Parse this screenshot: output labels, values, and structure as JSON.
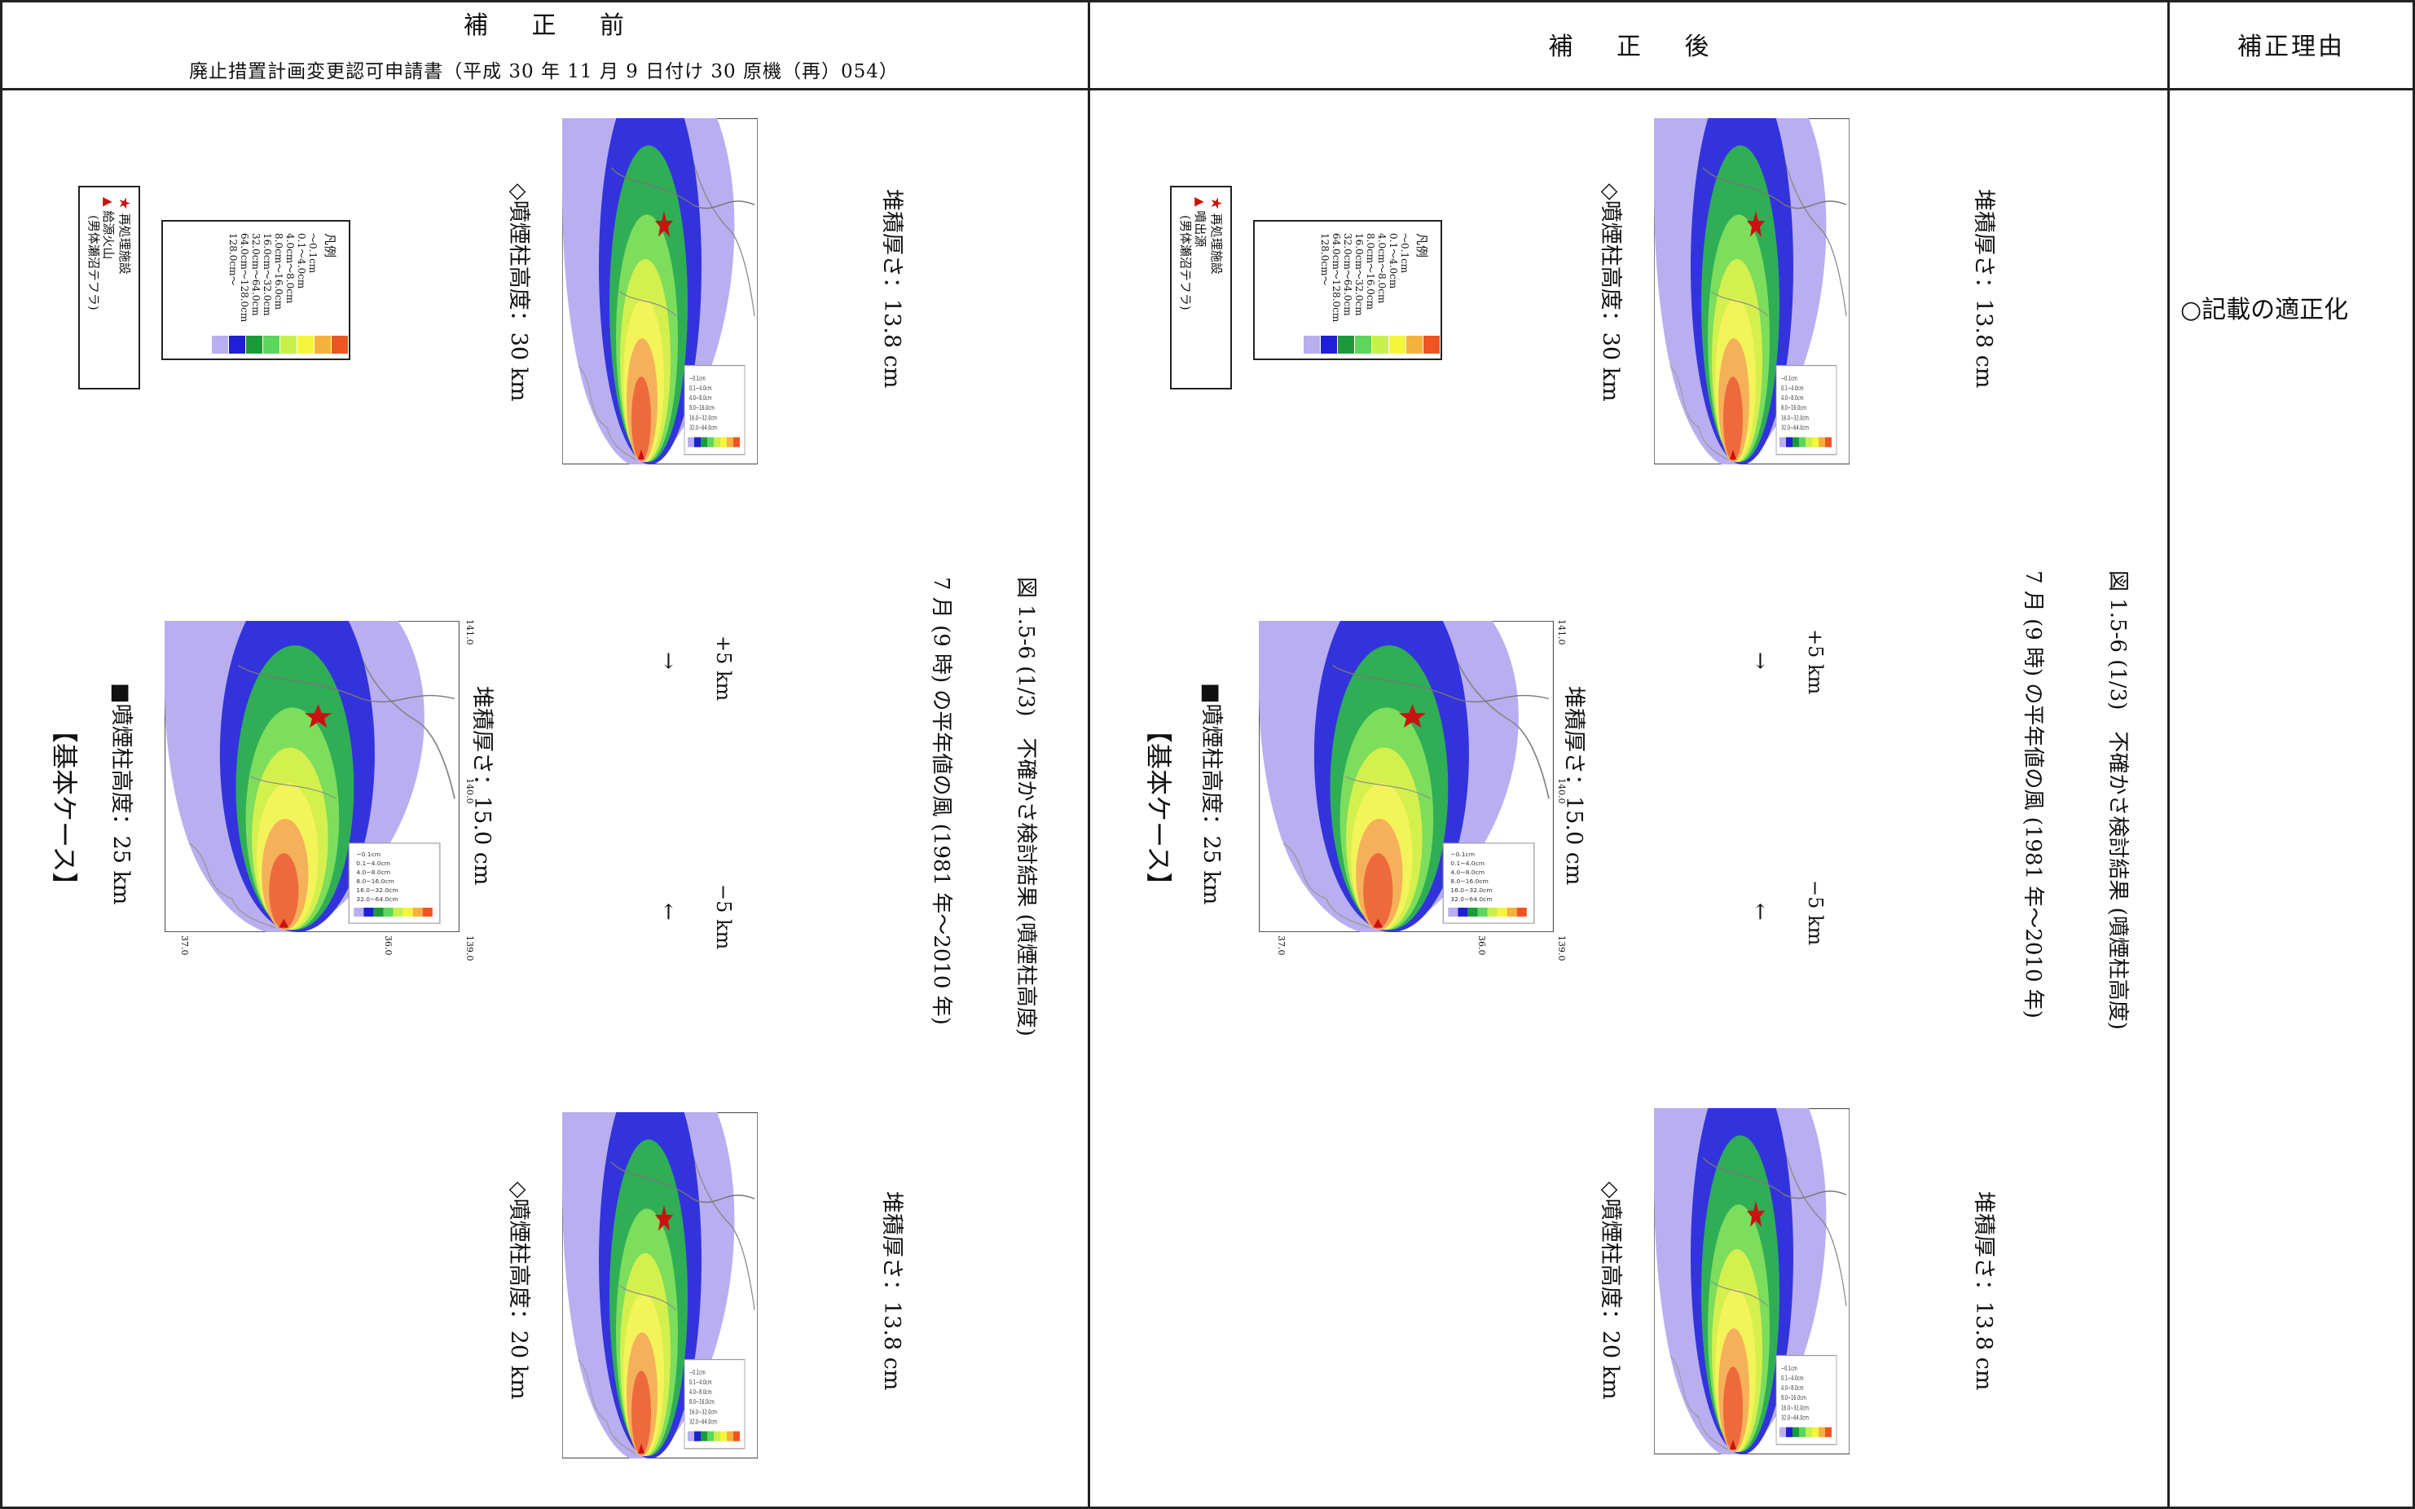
{
  "header": {
    "before_title": "補 正 前",
    "before_subtitle": "廃止措置計画変更認可申請書（平成 30 年 11 月 9 日付け 30 原機（再）054）",
    "after_title": "補 正 後",
    "reason_title": "補正理由"
  },
  "reason_text": "○記載の適正化",
  "before": {
    "basic_case": "【基本ケース】",
    "basic_height": "■噴煙柱高度：25 km",
    "basic_thickness": "堆積厚さ：15.0 cm",
    "upper_height": "◇噴煙柱高度：30 km",
    "upper_thickness": "堆積厚さ：13.8 cm",
    "lower_height": "◇噴煙柱高度：20 km",
    "lower_thickness": "堆積厚さ：13.8 cm",
    "plus": "+5 km",
    "minus": "−5 km",
    "arrow_up": "→",
    "arrow_down": "←",
    "caption_line1": "7 月 (9 時) の平年値の風 (1981 年～2010 年)",
    "caption_line2": "図 1.5-6 (1/3)　不確かさ検討結果 (噴煙柱高度)",
    "legend_facility": "再処理施設",
    "legend_source": "給源火山",
    "legend_source_sub": "(男体瀬沼テフラ)"
  },
  "after": {
    "basic_case": "【基本ケース】",
    "basic_height": "■噴煙柱高度：25 km",
    "basic_thickness": "堆積厚さ：15.0 cm",
    "upper_height": "◇噴煙柱高度：30 km",
    "upper_thickness": "堆積厚さ：13.8 cm",
    "lower_height": "◇噴煙柱高度：20 km",
    "lower_thickness": "堆積厚さ：13.8 cm",
    "plus": "+5 km",
    "minus": "−5 km",
    "arrow_up": "→",
    "arrow_down": "←",
    "caption_line1": "7 月 (9 時) の平年値の風 (1981 年～2010 年)",
    "caption_line2": "図 1.5-6 (1/3)　不確かさ検討結果 (噴煙柱高度)",
    "legend_facility": "再処理施設",
    "legend_source": "噴出源",
    "legend_source_sub": "(男体瀬沼テフラ)"
  },
  "legend": {
    "title": "凡例",
    "items": [
      "～0.1cm",
      "0.1～4.0cm",
      "4.0cm～8.0cm",
      "8.0cm～16.0cm",
      "16.0cm～32.0cm",
      "32.0cm～64.0cm",
      "64.0cm～128.0cm",
      "128.0cm～"
    ],
    "colors": [
      "#b9aef0",
      "#1f1fd8",
      "#1c9a3a",
      "#5cd65c",
      "#c8f04a",
      "#f5f53c",
      "#f5b13c",
      "#ee5522"
    ]
  },
  "map_labels": {
    "month": "7月",
    "lat_top": "37.0",
    "lat_bottom": "36.0",
    "lon_left": "139.0",
    "lon_mid": "140.0",
    "lon_right": "141.0"
  }
}
